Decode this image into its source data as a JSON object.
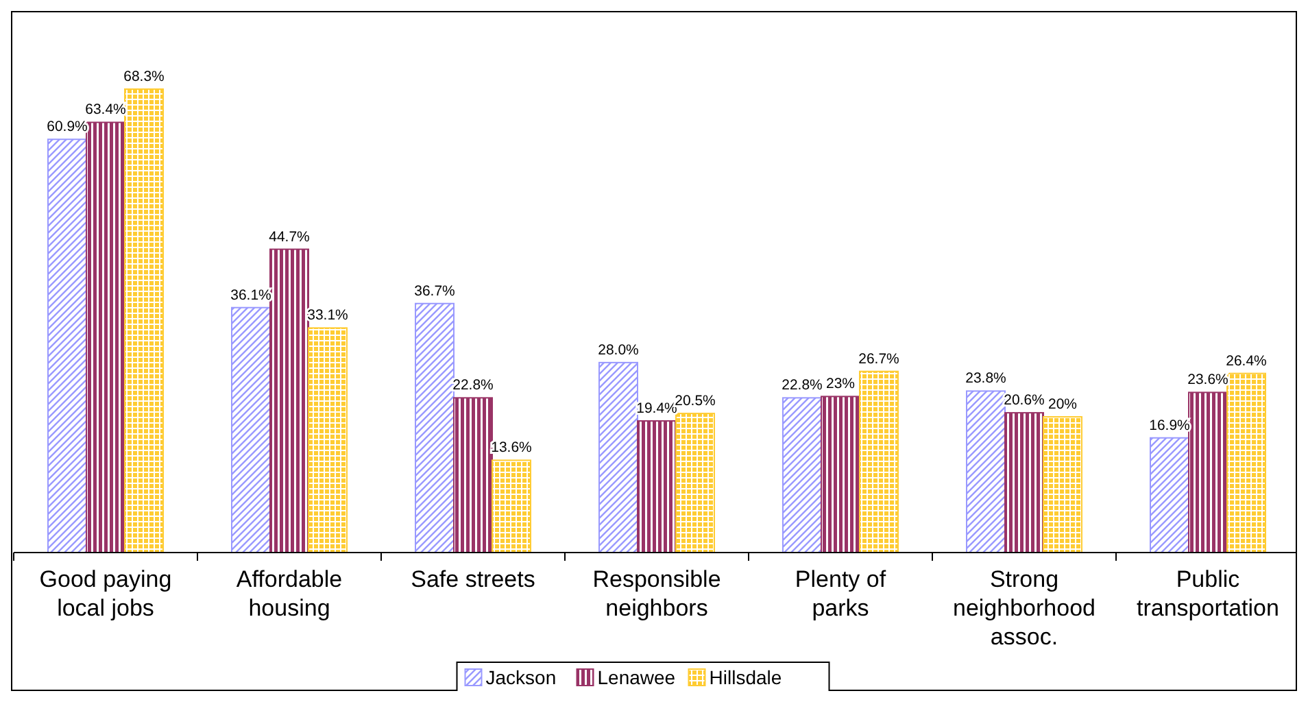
{
  "chart_data": {
    "type": "bar",
    "categories": [
      "Good paying local jobs",
      "Affordable housing",
      "Safe streets",
      "Responsible neighbors",
      "Plenty of parks",
      "Strong neighborhood assoc.",
      "Public transportation"
    ],
    "series": [
      {
        "name": "Jackson",
        "color": "#9999ff",
        "values": [
          60.9,
          36.1,
          36.7,
          28.0,
          22.8,
          23.8,
          16.9
        ],
        "value_labels": [
          "60.9%",
          "36.1%",
          "36.7%",
          "28.0%",
          "22.8%",
          "23.8%",
          "16.9%"
        ]
      },
      {
        "name": "Lenawee",
        "color": "#993366",
        "values": [
          63.4,
          44.7,
          22.8,
          19.4,
          23,
          20.6,
          23.6
        ],
        "value_labels": [
          "63.4%",
          "44.7%",
          "22.8%",
          "19.4%",
          "23%",
          "20.6%",
          "23.6%"
        ]
      },
      {
        "name": "Hillsdale",
        "color": "#ffcc33",
        "values": [
          68.3,
          33.1,
          13.6,
          20.5,
          26.7,
          20,
          26.4
        ],
        "value_labels": [
          "68.3%",
          "33.1%",
          "13.6%",
          "20.5%",
          "26.7%",
          "20%",
          "26.4%"
        ]
      }
    ],
    "legend": "bottom",
    "grid": false
  }
}
